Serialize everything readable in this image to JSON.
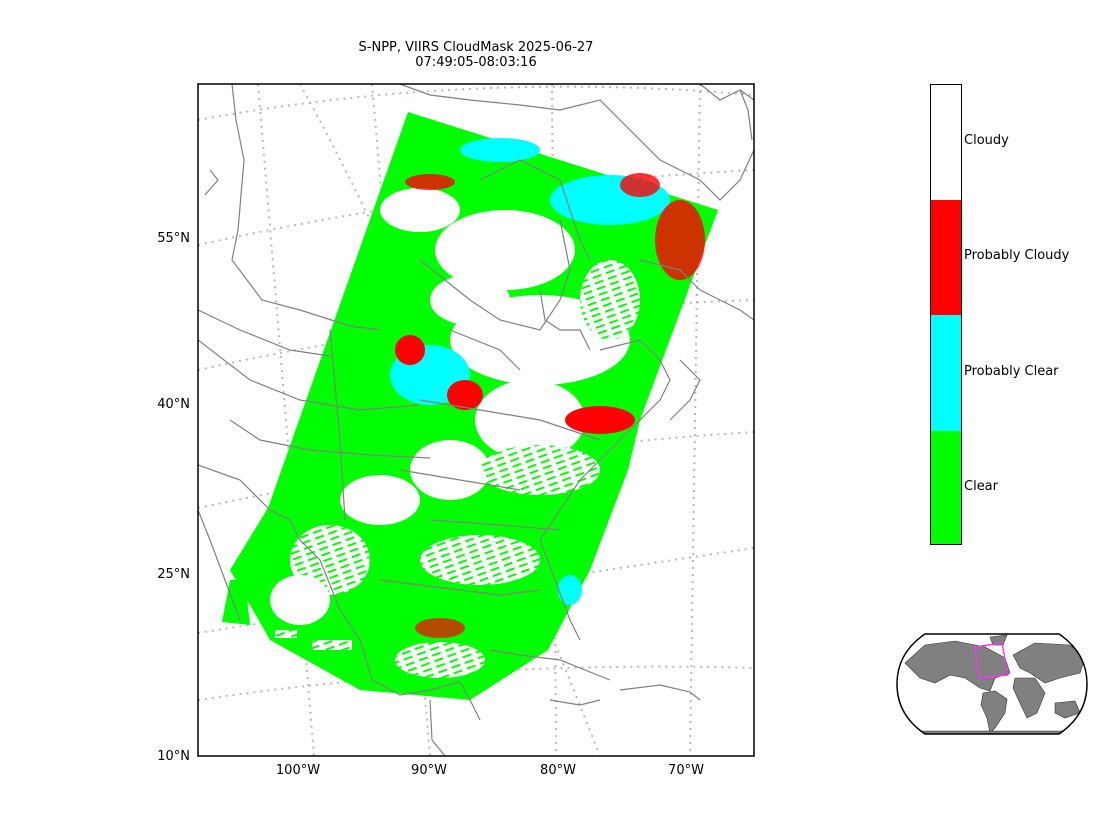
{
  "title": {
    "line1": "S-NPP, VIIRS CloudMask 2025-06-27",
    "line2": "07:49:05-08:03:16"
  },
  "lat_labels": [
    "55°N",
    "40°N",
    "25°N",
    "10°N"
  ],
  "lon_labels": [
    "100°W",
    "90°W",
    "80°W",
    "70°W"
  ],
  "legend": {
    "categories": [
      {
        "label": "Cloudy",
        "color": "#ffffff"
      },
      {
        "label": "Probably Cloudy",
        "color": "#ff0000"
      },
      {
        "label": "Probably Clear",
        "color": "#00ffff"
      },
      {
        "label": "Clear",
        "color": "#00ff00"
      }
    ]
  },
  "colors": {
    "coastline": "#808080",
    "graticule": "#b0b0b0",
    "inset_land": "#808080",
    "inset_box": "#ff33ff"
  }
}
